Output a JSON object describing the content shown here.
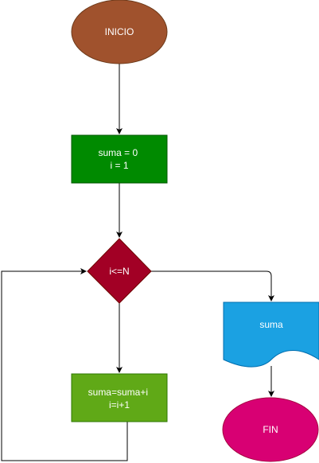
{
  "flowchart": {
    "start": {
      "label": "INICIO",
      "color": "#a0522d"
    },
    "init": {
      "lines": [
        "suma = 0",
        "i = 1"
      ],
      "color": "#008a00"
    },
    "condition": {
      "label": "i<=N",
      "color": "#a20025"
    },
    "loop_body": {
      "lines": [
        "suma=suma+i",
        "i=i+1"
      ],
      "color": "#60a917"
    },
    "output": {
      "label": "suma",
      "color": "#1ba1e2"
    },
    "end": {
      "label": "FIN",
      "color": "#d80073"
    }
  }
}
